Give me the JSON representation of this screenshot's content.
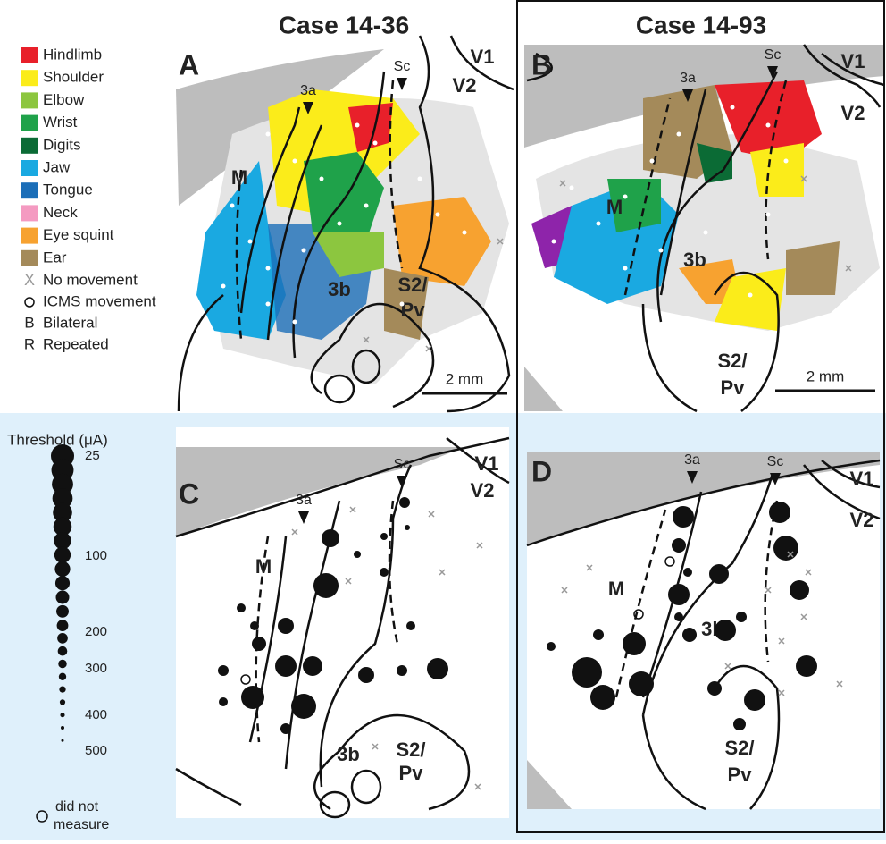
{
  "header": {
    "case_left": "Case 14-36",
    "case_right": "Case 14-93"
  },
  "legend": {
    "items": [
      {
        "name": "Hindlimb",
        "color": "#e8202a"
      },
      {
        "name": "Shoulder",
        "color": "#fbec1a"
      },
      {
        "name": "Elbow",
        "color": "#8cc63f"
      },
      {
        "name": "Wrist",
        "color": "#1fa24a"
      },
      {
        "name": "Digits",
        "color": "#0b6b35"
      },
      {
        "name": "Jaw",
        "color": "#1aa9e1"
      },
      {
        "name": "Tongue",
        "color": "#1b6eb8"
      },
      {
        "name": "Neck",
        "color": "#f49ac1"
      },
      {
        "name": "Eye squint",
        "color": "#f7a230"
      },
      {
        "name": "Ear",
        "color": "#a48a5a"
      }
    ],
    "symbols": [
      {
        "symbol": "X",
        "name": "No movement"
      },
      {
        "symbol": "O",
        "name": "ICMS movement"
      },
      {
        "symbol": "B",
        "name": "Bilateral"
      },
      {
        "symbol": "R",
        "name": "Repeated"
      }
    ]
  },
  "threshold": {
    "title": "Threshold (μA)",
    "labels": [
      "25",
      "100",
      "200",
      "300",
      "400",
      "500"
    ],
    "note": [
      "did not",
      "measure"
    ]
  },
  "panels": [
    {
      "letter": "A",
      "labels": {
        "v1": "V1",
        "v2": "V2",
        "a3": "3a",
        "sc": "Sc",
        "m": "M",
        "b3": "3b",
        "s2": "S2/",
        "pv": "Pv"
      },
      "scale": "2 mm"
    },
    {
      "letter": "B",
      "labels": {
        "v1": "V1",
        "v2": "V2",
        "a3": "3a",
        "sc": "Sc",
        "m": "M",
        "b3": "3b",
        "s2": "S2/",
        "pv": "Pv"
      },
      "scale": "2 mm"
    },
    {
      "letter": "C",
      "labels": {
        "v1": "V1",
        "v2": "V2",
        "a3": "3a",
        "sc": "Sc",
        "m": "M",
        "b3": "3b",
        "s2": "S2/",
        "pv": "Pv"
      }
    },
    {
      "letter": "D",
      "labels": {
        "v1": "V1",
        "v2": "V2",
        "a3": "3a",
        "sc": "Sc",
        "m": "M",
        "b3": "3b",
        "s2": "S2/",
        "pv": "Pv"
      }
    }
  ]
}
